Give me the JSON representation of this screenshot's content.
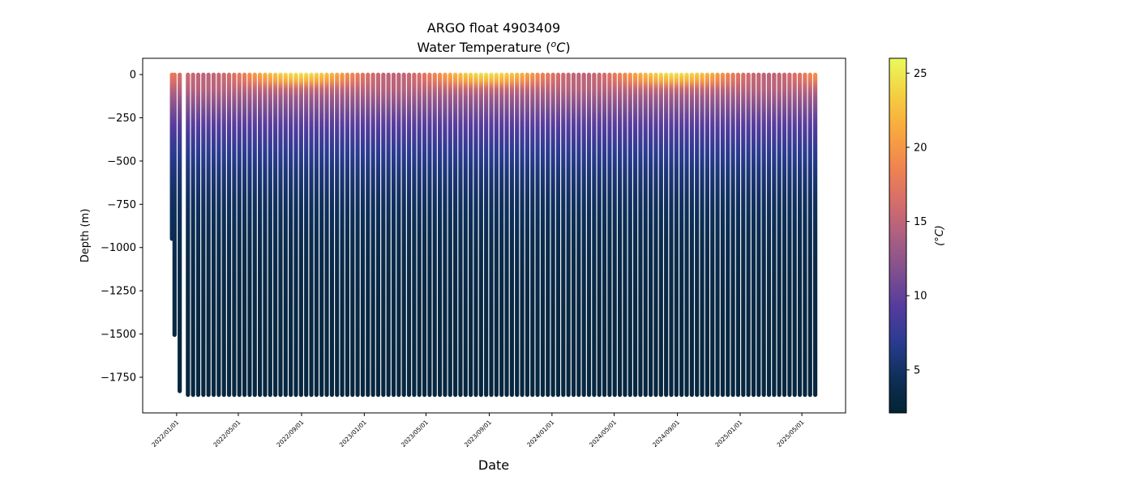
{
  "chart_data": {
    "type": "scatter",
    "title": "ARGO float 4903409",
    "subtitle": "Water Temperature (",
    "subtitle_unit_o": "o",
    "subtitle_unit_c": "C",
    "subtitle_close": ")",
    "xlabel": "Date",
    "ylabel": "Depth (m)",
    "colorbar_label": "(°C)",
    "xlim": [
      "2021-10-27",
      "2025-07-25"
    ],
    "ylim": [
      -1956,
      94
    ],
    "clim": [
      2.1,
      26.0
    ],
    "colormap": "thermal",
    "colormap_stops": [
      "#042333",
      "#0e2f5a",
      "#2a3b8f",
      "#553b9d",
      "#81508f",
      "#ad5f82",
      "#d86e69",
      "#f1864f",
      "#f9a93d",
      "#f4d043",
      "#e8fa5b"
    ],
    "x_ticks": [
      "2022/01/01",
      "2022/05/01",
      "2022/09/01",
      "2023/01/01",
      "2023/05/01",
      "2023/09/01",
      "2024/01/01",
      "2024/05/01",
      "2024/09/01",
      "2025/01/01",
      "2025/05/01"
    ],
    "y_ticks": [
      0,
      -250,
      -500,
      -750,
      -1000,
      -1250,
      -1500,
      -1750
    ],
    "y_tick_labels": [
      "0",
      "−250",
      "−500",
      "−750",
      "−1000",
      "−1250",
      "−1500",
      "−1750"
    ],
    "colorbar_ticks": [
      5,
      10,
      15,
      20,
      25
    ],
    "colorbar_tick_labels": [
      "5",
      "10",
      "15",
      "20",
      "25"
    ],
    "early_profiles": [
      {
        "date": "2021-12-23",
        "max_depth": -950
      },
      {
        "date": "2021-12-28",
        "max_depth": -1505
      },
      {
        "date": "2022-01-07",
        "max_depth": -1830
      }
    ],
    "regular_profiles": {
      "start": "2022-01-23",
      "interval_days": 10,
      "count": 123,
      "max_depth": -1852
    },
    "temperature_model": {
      "surface_mean": 20.0,
      "surface_amplitude": 5.0,
      "surface_peak": "2022-08-28",
      "mixed_layer_base_temp": 14.5,
      "mixed_layer_depth": 100,
      "deep_temp": 2.8,
      "decay_scale_m": 350
    }
  }
}
